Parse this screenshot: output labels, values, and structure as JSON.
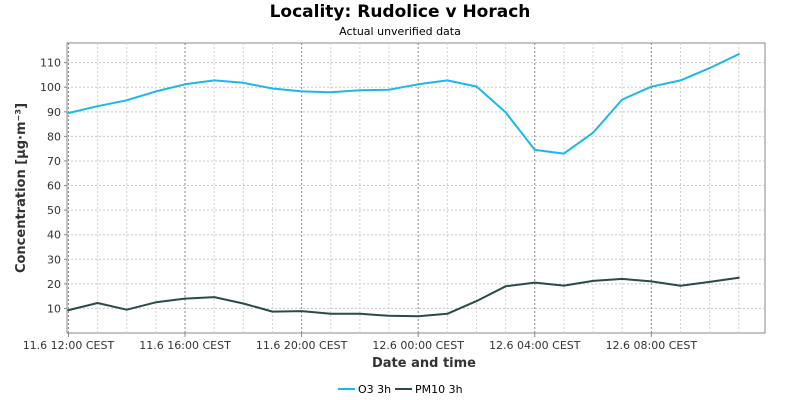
{
  "chart_data": {
    "type": "line",
    "title": "Locality: Rudolice v Horach",
    "subtitle": "Actual unverified data",
    "xlabel": "Date and time",
    "ylabel": "Concentration [µg·m⁻³]",
    "ylim": [
      0,
      118
    ],
    "yticks": [
      10,
      20,
      30,
      40,
      50,
      60,
      70,
      80,
      90,
      100,
      110
    ],
    "x_hours": [
      0,
      1,
      2,
      3,
      4,
      5,
      6,
      7,
      8,
      9,
      10,
      11,
      12,
      13,
      14,
      15,
      16,
      17,
      18,
      19,
      20,
      21,
      22,
      23
    ],
    "xlim_hours": [
      -0.05,
      23.9
    ],
    "xticks": [
      {
        "hour": 0,
        "label": "11.6 12:00 CEST"
      },
      {
        "hour": 4,
        "label": "11.6 16:00 CEST"
      },
      {
        "hour": 8,
        "label": "11.6 20:00 CEST"
      },
      {
        "hour": 12,
        "label": "12.6 00:00 CEST"
      },
      {
        "hour": 16,
        "label": "12.6 04:00 CEST"
      },
      {
        "hour": 20,
        "label": "12.6 08:00 CEST"
      }
    ],
    "grid": true,
    "legend_position": "bottom",
    "series": [
      {
        "name": "O3 3h",
        "color": "#1ab8ec",
        "values": [
          89.5,
          92.3,
          94.7,
          98.3,
          101.2,
          102.8,
          101.8,
          99.5,
          98.3,
          98.0,
          98.8,
          99.0,
          101.2,
          102.8,
          100.3,
          89.8,
          74.5,
          73.0,
          81.5,
          95.0,
          100.2,
          102.8,
          107.8,
          113.5
        ]
      },
      {
        "name": "PM10 3h",
        "color": "#2c4a4a",
        "values": [
          9.3,
          12.2,
          9.5,
          12.5,
          14.0,
          14.6,
          12.0,
          8.7,
          8.9,
          7.8,
          7.8,
          7.0,
          6.8,
          7.8,
          13.0,
          19.0,
          20.5,
          19.3,
          21.2,
          22.0,
          21.0,
          19.2,
          20.8,
          22.5
        ]
      }
    ]
  }
}
